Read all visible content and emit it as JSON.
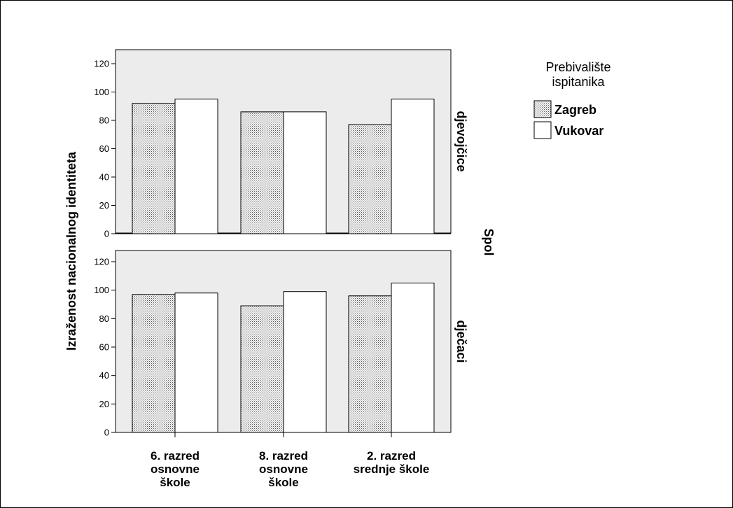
{
  "chart_data": {
    "type": "bar",
    "ylabel": "Izraženost nacionalnog identiteta",
    "ylim": [
      0,
      120
    ],
    "yticks": [
      0,
      20,
      40,
      60,
      80,
      100,
      120
    ],
    "categories": [
      [
        "6. razred",
        "osnovne",
        "škole"
      ],
      [
        "8. razred",
        "osnovne",
        "škole"
      ],
      [
        "2. razred",
        "srednje škole"
      ]
    ],
    "row_variable": "Spol",
    "legend": {
      "title_lines": [
        "Prebivalište",
        "ispitanika"
      ],
      "placement": "right"
    },
    "series_styles": [
      {
        "fill": "dotted",
        "color": "#000000"
      },
      {
        "fill": "plain",
        "color": "#ffffff"
      }
    ],
    "series_names": [
      "Zagreb",
      "Vukovar"
    ],
    "panels": [
      {
        "label": "djevojčice",
        "series": [
          {
            "name": "Zagreb",
            "values": [
              92,
              86,
              77
            ]
          },
          {
            "name": "Vukovar",
            "values": [
              95,
              86,
              95
            ]
          }
        ]
      },
      {
        "label": "dječaci",
        "series": [
          {
            "name": "Zagreb",
            "values": [
              97,
              89,
              96
            ]
          },
          {
            "name": "Vukovar",
            "values": [
              98,
              99,
              105
            ]
          }
        ]
      }
    ],
    "colors": {
      "panel_bg": "#ececec",
      "bar_outline": "#000000"
    }
  }
}
